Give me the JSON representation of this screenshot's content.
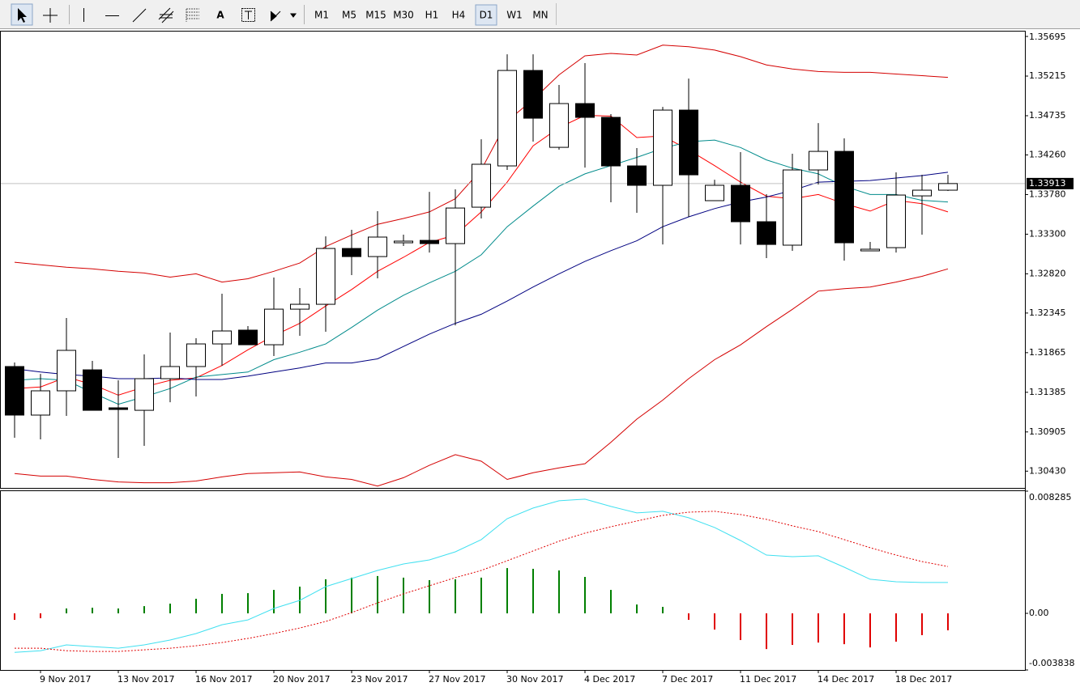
{
  "toolbar": {
    "text_tool": "A",
    "timeframes": [
      "M1",
      "M5",
      "M15",
      "M30",
      "H1",
      "H4",
      "D1",
      "W1",
      "MN"
    ],
    "active_timeframe": "D1"
  },
  "chart_data": [
    {
      "type": "candlestick",
      "categories": [
        null,
        "9 Nov 2017",
        null,
        null,
        "13 Nov 2017",
        null,
        null,
        "16 Nov 2017",
        null,
        null,
        "20 Nov 2017",
        null,
        null,
        "23 Nov 2017",
        null,
        null,
        "27 Nov 2017",
        null,
        null,
        "30 Nov 2017",
        null,
        null,
        "4 Dec 2017",
        null,
        null,
        "7 Dec 2017",
        null,
        null,
        "11 Dec 2017",
        null,
        null,
        "14 Dec 2017",
        null,
        null,
        "18 Dec 2017",
        null,
        null
      ],
      "open": [
        1.31697,
        1.31109,
        1.31403,
        1.31657,
        1.31197,
        1.31167,
        1.3155,
        1.31697,
        1.31971,
        1.32138,
        1.31961,
        1.32392,
        1.32451,
        1.33127,
        1.33029,
        1.33196,
        1.33225,
        1.33186,
        1.33627,
        1.34127,
        1.35283,
        1.34352,
        1.34882,
        1.34715,
        1.34127,
        1.33892,
        1.34803,
        1.33706,
        1.33892,
        1.33451,
        1.33167,
        1.34078,
        1.34303,
        1.33098,
        1.33137,
        1.33764,
        1.33833
      ],
      "high": [
        1.31746,
        1.31608,
        1.32285,
        1.31765,
        1.3153,
        1.31844,
        1.32108,
        1.3204,
        1.32579,
        1.32187,
        1.32775,
        1.32647,
        1.33274,
        1.33353,
        1.33578,
        1.33294,
        1.33813,
        1.33843,
        1.3445,
        1.35479,
        1.35479,
        1.35107,
        1.35372,
        1.34754,
        1.34343,
        1.34842,
        1.35185,
        1.3396,
        1.34294,
        1.33784,
        1.34274,
        1.34646,
        1.3446,
        1.33206,
        1.34049,
        1.34019,
        1.34019
      ],
      "low": [
        1.30834,
        1.30815,
        1.31099,
        1.31167,
        1.30589,
        1.30736,
        1.31265,
        1.31334,
        1.31706,
        1.31961,
        1.31824,
        1.32069,
        1.32118,
        1.32804,
        1.32765,
        1.33157,
        1.33078,
        1.32196,
        1.3349,
        1.34078,
        1.34421,
        1.34323,
        1.34107,
        1.33686,
        1.33559,
        1.33176,
        1.3351,
        1.33706,
        1.33176,
        1.3301,
        1.33098,
        1.33902,
        1.3298,
        1.33098,
        1.33078,
        1.33294,
        1.33823
      ],
      "close": [
        1.31109,
        1.31403,
        1.31893,
        1.31167,
        1.31177,
        1.3155,
        1.31697,
        1.31971,
        1.32128,
        1.31961,
        1.32392,
        1.32451,
        1.33127,
        1.33029,
        1.33265,
        1.33216,
        1.33186,
        1.33617,
        1.34147,
        1.35283,
        1.34705,
        1.34882,
        1.34715,
        1.34127,
        1.33892,
        1.34803,
        1.34019,
        1.33892,
        1.33451,
        1.33176,
        1.34078,
        1.34303,
        1.33196,
        1.33118,
        1.33774,
        1.33833,
        1.33913
      ],
      "up_color": "#ffffff",
      "down_color": "#000000",
      "lines": [
        {
          "color": "#d40000",
          "values": [
            1.3296,
            1.3293,
            1.329,
            1.3288,
            1.3285,
            1.3283,
            1.3278,
            1.3282,
            1.3272,
            1.3276,
            1.3285,
            1.3295,
            1.3315,
            1.3329,
            1.3342,
            1.3349,
            1.3357,
            1.3373,
            1.3408,
            1.3467,
            1.3493,
            1.3523,
            1.3546,
            1.3549,
            1.3547,
            1.3559,
            1.3557,
            1.3553,
            1.3545,
            1.3535,
            1.353,
            1.3527,
            1.3526,
            1.3526,
            1.3524,
            1.3522,
            1.352
          ]
        },
        {
          "color": "#d40000",
          "values": [
            1.304,
            1.3037,
            1.3037,
            1.3033,
            1.303,
            1.3029,
            1.3029,
            1.3031,
            1.3036,
            1.304,
            1.3041,
            1.3042,
            1.3036,
            1.3033,
            1.3025,
            1.3035,
            1.305,
            1.3063,
            1.3055,
            1.3033,
            1.3041,
            1.3047,
            1.3052,
            1.3078,
            1.3106,
            1.3129,
            1.3155,
            1.3178,
            1.3196,
            1.3218,
            1.3239,
            1.3261,
            1.3264,
            1.3266,
            1.3272,
            1.3279,
            1.3288
          ]
        },
        {
          "color": "#ff0000",
          "values": [
            1.3143,
            1.3145,
            1.3157,
            1.3148,
            1.3135,
            1.3145,
            1.3153,
            1.3156,
            1.3171,
            1.319,
            1.3207,
            1.3222,
            1.3243,
            1.3263,
            1.3285,
            1.3302,
            1.332,
            1.3329,
            1.3357,
            1.3393,
            1.3437,
            1.3459,
            1.3474,
            1.3473,
            1.3447,
            1.3449,
            1.3432,
            1.3413,
            1.3393,
            1.3376,
            1.3373,
            1.3378,
            1.3367,
            1.3358,
            1.3371,
            1.3367,
            1.3357
          ]
        },
        {
          "color": "#008b8b",
          "values": [
            1.3153,
            1.3155,
            1.3153,
            1.3138,
            1.3124,
            1.3133,
            1.3143,
            1.3157,
            1.316,
            1.3163,
            1.3178,
            1.3187,
            1.3197,
            1.3217,
            1.3238,
            1.3256,
            1.3271,
            1.3285,
            1.3305,
            1.3339,
            1.3364,
            1.3388,
            1.3403,
            1.3413,
            1.3423,
            1.3434,
            1.3442,
            1.3444,
            1.3435,
            1.342,
            1.341,
            1.3403,
            1.3388,
            1.3378,
            1.3378,
            1.3371,
            1.3369
          ]
        },
        {
          "color": "#000080",
          "values": [
            1.3167,
            1.3163,
            1.316,
            1.3158,
            1.3155,
            1.3155,
            1.3156,
            1.3154,
            1.3154,
            1.3158,
            1.3163,
            1.3168,
            1.3174,
            1.3174,
            1.3179,
            1.3194,
            1.3209,
            1.3222,
            1.3233,
            1.3249,
            1.3266,
            1.3282,
            1.3297,
            1.331,
            1.3322,
            1.3339,
            1.3351,
            1.3361,
            1.3369,
            1.3375,
            1.3383,
            1.3393,
            1.3394,
            1.3395,
            1.3398,
            1.3401,
            1.3405
          ]
        }
      ],
      "current_price": 1.33913,
      "ylim": [
        1.30227,
        1.35764
      ],
      "yticks": [
        1.35695,
        1.35215,
        1.34735,
        {
          "value": 1.3426,
          "label": "1.34260"
        },
        {
          "value": 1.3378,
          "label": "1.33780"
        },
        {
          "value": 1.333,
          "label": "1.33300"
        },
        {
          "value": 1.3282,
          "label": "1.32820"
        },
        1.32345,
        1.31865,
        1.31385,
        1.30905,
        {
          "value": 1.3043,
          "label": "1.30430"
        }
      ]
    },
    {
      "type": "macd",
      "values": [
        -0.00044,
        -0.00033,
        0.00033,
        0.00038,
        0.00033,
        0.00049,
        0.00066,
        0.00099,
        0.00132,
        0.00137,
        0.00159,
        0.00181,
        0.00231,
        0.00242,
        0.00253,
        0.00242,
        0.00225,
        0.00231,
        0.00242,
        0.00307,
        0.00302,
        0.00291,
        0.00247,
        0.00159,
        0.0006,
        0.00044,
        -0.00044,
        -0.0011,
        -0.00181,
        -0.00242,
        -0.00214,
        -0.00198,
        -0.00209,
        -0.00231,
        -0.00192,
        -0.00148,
        -0.00115
      ],
      "color": "#008000",
      "negative_color": "#e00000",
      "lines": [
        {
          "color": "#40e0f0",
          "dashed": false,
          "values": [
            -0.00264,
            -0.00253,
            -0.00214,
            -0.00225,
            -0.00236,
            -0.00214,
            -0.00181,
            -0.00137,
            -0.00077,
            -0.00044,
            0.00033,
            0.00088,
            0.00181,
            0.00236,
            0.00291,
            0.00335,
            0.00362,
            0.00417,
            0.005,
            0.00642,
            0.00714,
            0.00763,
            0.00774,
            0.00725,
            0.00681,
            0.00692,
            0.00648,
            0.00582,
            0.00494,
            0.00395,
            0.00384,
            0.0039,
            0.00313,
            0.00231,
            0.00214,
            0.00209,
            0.00209
          ]
        },
        {
          "color": "#e00000",
          "dashed": true,
          "values": [
            -0.00236,
            -0.00236,
            -0.00253,
            -0.00258,
            -0.00258,
            -0.00247,
            -0.00236,
            -0.0022,
            -0.00198,
            -0.0017,
            -0.00137,
            -0.00099,
            -0.00055,
            5e-05,
            0.00071,
            0.00132,
            0.00187,
            0.00242,
            0.00291,
            0.00357,
            0.00423,
            0.00489,
            0.00544,
            0.00587,
            0.00626,
            0.00664,
            0.00686,
            0.00692,
            0.0067,
            0.00637,
            0.00593,
            0.00554,
            0.005,
            0.00445,
            0.00395,
            0.00351,
            0.00318
          ]
        }
      ],
      "ylim": [
        -0.003838,
        0.008285
      ],
      "yticks": [
        0.008285,
        {
          "value": 0,
          "label": "0.00"
        },
        -0.003838
      ]
    }
  ]
}
